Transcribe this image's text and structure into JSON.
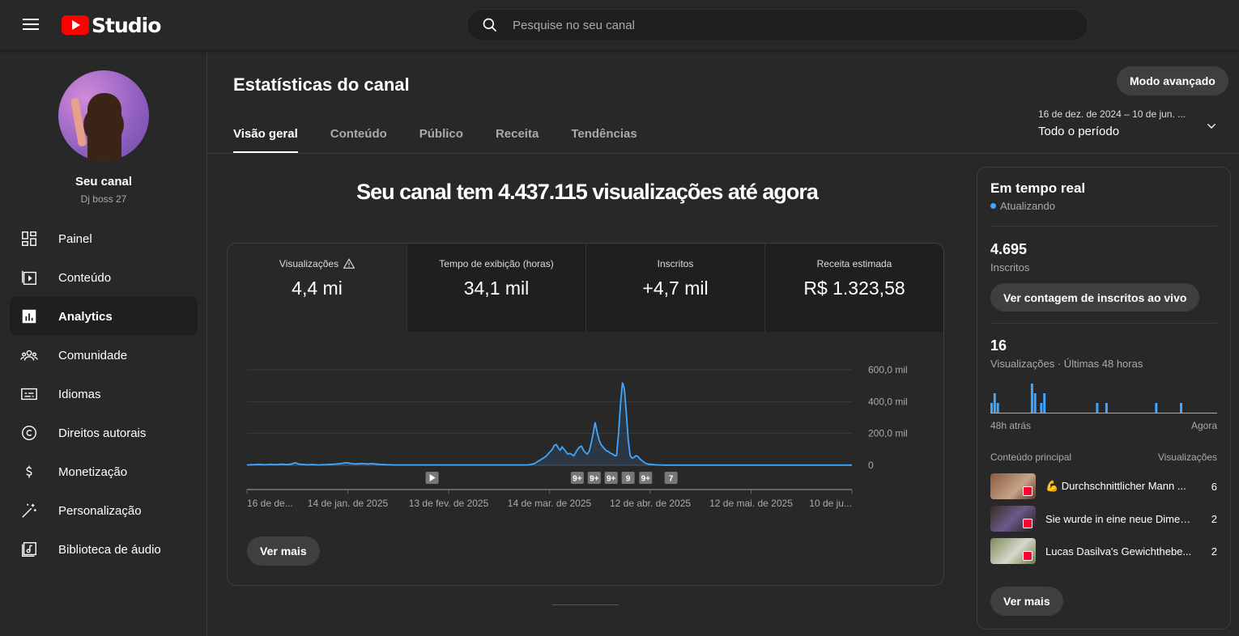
{
  "app": {
    "logo_text": "Studio"
  },
  "search": {
    "placeholder": "Pesquise no seu canal"
  },
  "channel": {
    "name": "Seu canal",
    "handle": "Dj boss 27"
  },
  "sidebar": {
    "items": [
      {
        "label": "Painel",
        "icon": "dashboard-icon"
      },
      {
        "label": "Conteúdo",
        "icon": "content-icon"
      },
      {
        "label": "Analytics",
        "icon": "analytics-icon",
        "active": true
      },
      {
        "label": "Comunidade",
        "icon": "community-icon"
      },
      {
        "label": "Idiomas",
        "icon": "subtitles-icon"
      },
      {
        "label": "Direitos autorais",
        "icon": "copyright-icon"
      },
      {
        "label": "Monetização",
        "icon": "monetization-icon"
      },
      {
        "label": "Personalização",
        "icon": "customization-icon"
      },
      {
        "label": "Biblioteca de áudio",
        "icon": "audio-library-icon"
      }
    ]
  },
  "page": {
    "title": "Estatísticas do canal",
    "advanced_mode": "Modo avançado"
  },
  "tabs": [
    "Visão geral",
    "Conteúdo",
    "Público",
    "Receita",
    "Tendências"
  ],
  "period": {
    "range": "16 de dez. de 2024 – 10 de jun. ...",
    "label": "Todo o período"
  },
  "headline": "Seu canal tem 4.437.115 visualizações até agora",
  "metrics": [
    {
      "label": "Visualizações",
      "value": "4,4 mi"
    },
    {
      "label": "Tempo de exibição (horas)",
      "value": "34,1 mil"
    },
    {
      "label": "Inscritos",
      "value": "+4,7 mil"
    },
    {
      "label": "Receita estimada",
      "value": "R$ 1.323,58"
    }
  ],
  "chart_data": {
    "type": "line",
    "series": [
      {
        "values": [
          3000,
          2000,
          4000,
          3000,
          5000,
          4000,
          6000,
          5000,
          4000,
          3000,
          4000,
          5000,
          6000,
          5000,
          4000,
          4000,
          5000,
          6000,
          7000,
          6000,
          5000,
          4000,
          6000,
          8000,
          12000,
          16000,
          10000,
          7000,
          6000,
          5000,
          4000,
          3000,
          3000,
          4000,
          4000,
          3000,
          3000,
          2000,
          3000,
          4000,
          3000,
          4000,
          5000,
          6000,
          6000,
          7000,
          8000,
          9000,
          10000,
          12000,
          14000,
          16000,
          14000,
          12000,
          10000,
          9000,
          8000,
          9000,
          10000,
          11000,
          10000,
          9000,
          8000,
          9000,
          10000,
          9000,
          8000,
          7000,
          6000,
          5000,
          4000,
          4000,
          3000,
          3000,
          3000,
          2000,
          2000,
          2000,
          2000,
          2000,
          2000,
          2000,
          2000,
          2000,
          2000,
          2000,
          2000,
          2000,
          2000,
          2000,
          2000,
          2000,
          2000,
          2000,
          2000,
          2000,
          2000,
          2000,
          2000,
          2000,
          2000,
          2000,
          2000,
          2000,
          2000,
          2000,
          2000,
          2000,
          2000,
          2000,
          2000,
          2000,
          2000,
          2000,
          2000,
          2000,
          2000,
          2000,
          2000,
          2000,
          2000,
          2000,
          2000,
          2000,
          2000,
          2000,
          2000,
          2000,
          2000,
          2000,
          2000,
          2000,
          2000,
          2000,
          2000,
          2000,
          2000,
          2000,
          2000,
          2000,
          2000,
          2000,
          2000,
          2000,
          2000,
          3000,
          5000,
          8000,
          12000,
          20000,
          28000,
          35000,
          42000,
          50000,
          60000,
          75000,
          88000,
          100000,
          125000,
          130000,
          110000,
          95000,
          115000,
          100000,
          85000,
          70000,
          75000,
          68000,
          60000,
          80000,
          100000,
          115000,
          120000,
          95000,
          80000,
          70000,
          90000,
          140000,
          200000,
          270000,
          210000,
          160000,
          130000,
          115000,
          100000,
          90000,
          85000,
          75000,
          70000,
          60000,
          62000,
          200000,
          380000,
          520000,
          480000,
          330000,
          160000,
          60000,
          45000,
          50000,
          60000,
          55000,
          40000,
          30000,
          20000,
          12000,
          8000,
          6000,
          5000,
          4000,
          3000,
          2000,
          2000,
          2000,
          1000,
          1000,
          1000,
          1000,
          1000,
          1000,
          1000,
          1000,
          1000,
          1000,
          1000,
          1000,
          1000,
          1000,
          1000,
          1000,
          1000,
          1000,
          1000,
          1000,
          1000,
          1000,
          1000,
          1000,
          1000,
          1000,
          1000,
          1000,
          1000,
          1000,
          1000,
          1000,
          1000,
          1000,
          1000,
          1000,
          1000,
          1000,
          1000,
          1000,
          1000,
          1000,
          1000,
          1000,
          1000,
          1000,
          1000,
          1000,
          1000,
          1000,
          1000,
          1000,
          1000,
          1000,
          1000,
          1000,
          1000,
          1000,
          1000,
          1000,
          1000,
          1000,
          1000,
          1000,
          1000,
          1000,
          1000,
          1000,
          1000,
          1000,
          1000,
          1000,
          1000,
          1000,
          1000,
          1000,
          1000,
          1000,
          1000,
          1000,
          1000,
          1000,
          1000,
          1000,
          1000,
          1000,
          1000,
          1000,
          1000,
          1000,
          1000,
          1000,
          1000,
          1000,
          1000,
          1000,
          1000,
          1000
        ]
      }
    ],
    "x_ticks": [
      "16 de de...",
      "14 de jan. de 2025",
      "13 de fev. de 2025",
      "14 de mar. de 2025",
      "12 de abr. de 2025",
      "12 de mai. de 2025",
      "10 de ju..."
    ],
    "y_ticks": [
      "600,0 mil",
      "400,0 mil",
      "200,0 mil",
      "0"
    ],
    "ylim": [
      0,
      600000
    ],
    "grid": true,
    "markers": [
      {
        "label": "",
        "kind": "play",
        "position": 0.306
      },
      {
        "label": "9+",
        "position": 0.546
      },
      {
        "label": "9+",
        "position": 0.574
      },
      {
        "label": "9+",
        "position": 0.602
      },
      {
        "label": "9",
        "position": 0.63
      },
      {
        "label": "9+",
        "position": 0.659
      },
      {
        "label": "7",
        "position": 0.701
      }
    ]
  },
  "ver_mais": "Ver mais",
  "realtime": {
    "title": "Em tempo real",
    "status": "Atualizando",
    "subscribers": "4.695",
    "subscribers_label": "Inscritos",
    "live_button": "Ver contagem de inscritos ao vivo",
    "views": "16",
    "views_label": "Visualizações · Últimas 48 horas",
    "bars": [
      1,
      2,
      1,
      0,
      0,
      0,
      0,
      0,
      0,
      0,
      0,
      0,
      0,
      3,
      2,
      0,
      1,
      2,
      0,
      0,
      0,
      0,
      0,
      0,
      0,
      0,
      0,
      0,
      0,
      0,
      0,
      0,
      0,
      0,
      1,
      0,
      0,
      1,
      0,
      0,
      0,
      0,
      0,
      0,
      0,
      0,
      0,
      0,
      0,
      0,
      0,
      0,
      0,
      1,
      0,
      0,
      0,
      0,
      0,
      0,
      0,
      1,
      0,
      0,
      0,
      0,
      0,
      0,
      0,
      0,
      0,
      0,
      0
    ],
    "axis_start": "48h atrás",
    "axis_end": "Agora",
    "content_header": "Conteúdo principal",
    "views_header": "Visualizações",
    "items": [
      {
        "title": "💪 Durchschnittlicher Mann ...",
        "views": "6"
      },
      {
        "title": "Sie wurde in eine neue Dimen...",
        "views": "2"
      },
      {
        "title": "Lucas Dasilva's Gewichthebe...",
        "views": "2"
      }
    ],
    "more": "Ver mais"
  },
  "colors": {
    "accent": "#3ea6ff",
    "background": "#282828",
    "brand": "#ff0000"
  }
}
